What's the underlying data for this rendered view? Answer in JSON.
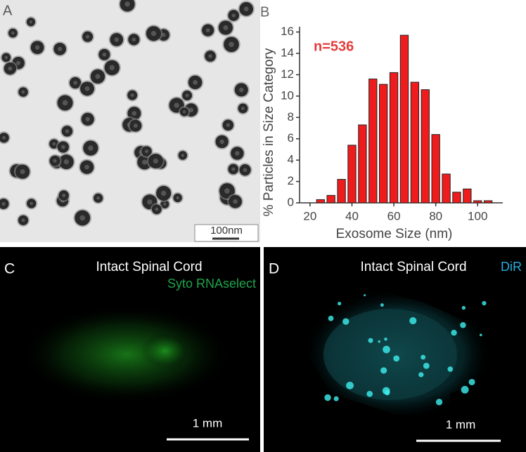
{
  "panels": {
    "a": {
      "label": "A",
      "scale_bar": "100nm"
    },
    "b": {
      "label": "B"
    },
    "c": {
      "label": "C",
      "title": "Intact Spinal Cord",
      "stain": "Syto RNAselect",
      "scale_bar": "1 mm"
    },
    "d": {
      "label": "D",
      "title": "Intact Spinal Cord",
      "stain": "DiR",
      "scale_bar": "1 mm"
    }
  },
  "chart_data": {
    "type": "histogram",
    "annotation": "n=536",
    "x_label": "Exosome Size (nm)",
    "y_label": "% Particles in Size Category",
    "bins": [
      22.5,
      27.5,
      32.5,
      37.5,
      42.5,
      47.5,
      52.5,
      57.5,
      62.5,
      67.5,
      72.5,
      77.5,
      82.5,
      87.5,
      92.5,
      97.5,
      102.5,
      107.5
    ],
    "values": [
      0.3,
      0.7,
      2.2,
      5.4,
      7.3,
      11.6,
      11.1,
      12.2,
      15.7,
      11.3,
      10.6,
      6.4,
      2.7,
      1.0,
      1.3,
      0.2,
      0.2
    ],
    "color": "#ee1c1c",
    "xlim": [
      15,
      112
    ],
    "ylim": [
      0,
      16.5
    ],
    "xticks": [
      20,
      40,
      60,
      80,
      100
    ],
    "yticks": [
      0,
      2,
      4,
      6,
      8,
      10,
      12,
      14,
      16
    ]
  }
}
